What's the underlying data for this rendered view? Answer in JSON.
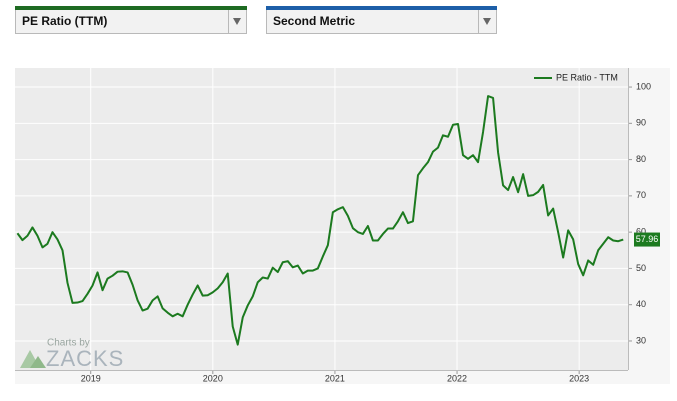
{
  "controls": {
    "metric_1": "PE Ratio (TTM)",
    "metric_2": "Second Metric"
  },
  "watermark": {
    "caption": "Charts by",
    "brand": "ZACKS"
  },
  "chart_data": {
    "type": "line",
    "x": [
      2018.4,
      2018.441,
      2018.482,
      2018.523,
      2018.564,
      2018.605,
      2018.646,
      2018.687,
      2018.728,
      2018.769,
      2018.81,
      2018.851,
      2018.892,
      2018.933,
      2018.974,
      2019.015,
      2019.056,
      2019.097,
      2019.138,
      2019.179,
      2019.22,
      2019.261,
      2019.302,
      2019.343,
      2019.384,
      2019.425,
      2019.466,
      2019.507,
      2019.548,
      2019.589,
      2019.63,
      2019.671,
      2019.712,
      2019.753,
      2019.794,
      2019.835,
      2019.876,
      2019.917,
      2019.958,
      2019.999,
      2020.04,
      2020.081,
      2020.122,
      2020.163,
      2020.204,
      2020.245,
      2020.286,
      2020.327,
      2020.368,
      2020.409,
      2020.45,
      2020.491,
      2020.532,
      2020.573,
      2020.614,
      2020.655,
      2020.696,
      2020.737,
      2020.778,
      2020.819,
      2020.86,
      2020.901,
      2020.942,
      2020.983,
      2021.024,
      2021.065,
      2021.106,
      2021.147,
      2021.188,
      2021.229,
      2021.27,
      2021.311,
      2021.352,
      2021.393,
      2021.434,
      2021.475,
      2021.516,
      2021.557,
      2021.598,
      2021.639,
      2021.68,
      2021.721,
      2021.762,
      2021.803,
      2021.844,
      2021.885,
      2021.926,
      2021.967,
      2022.008,
      2022.049,
      2022.09,
      2022.131,
      2022.172,
      2022.213,
      2022.254,
      2022.295,
      2022.336,
      2022.377,
      2022.418,
      2022.459,
      2022.5,
      2022.541,
      2022.582,
      2022.623,
      2022.664,
      2022.705,
      2022.746,
      2022.787,
      2022.828,
      2022.869,
      2022.91,
      2022.951,
      2022.992,
      2023.033,
      2023.074,
      2023.115,
      2023.156,
      2023.197,
      2023.238,
      2023.279,
      2023.32,
      2023.361
    ],
    "series": [
      {
        "name": "PE Ratio - TTM",
        "color": "#1c7a1f",
        "values": [
          59.7,
          57.8,
          59,
          61.3,
          59,
          55.8,
          56.8,
          60,
          58,
          55,
          46,
          40.5,
          40.6,
          41,
          43,
          45.3,
          48.9,
          44,
          47.2,
          48,
          49.1,
          49.2,
          48.9,
          45.5,
          41.2,
          38.4,
          38.9,
          41.2,
          42.3,
          39,
          37.8,
          36.8,
          37.5,
          36.8,
          40,
          42.8,
          45.3,
          42.5,
          42.6,
          43.4,
          44.5,
          46.2,
          48.6,
          34,
          29,
          36.5,
          39.8,
          42.3,
          46.2,
          47.5,
          47.2,
          50.2,
          49,
          51.7,
          52,
          50.3,
          50.8,
          48.6,
          49.4,
          49.4,
          50,
          53.3,
          56.4,
          65.5,
          66.3,
          66.9,
          64.5,
          61.1,
          60,
          59.5,
          61.7,
          57.7,
          57.7,
          59.5,
          61,
          61,
          63,
          65.5,
          62.5,
          63,
          75.7,
          77.6,
          79.3,
          82.2,
          83.3,
          86.7,
          86.3,
          89.6,
          89.8,
          81.2,
          80.2,
          81.2,
          79.3,
          87.6,
          97.5,
          97,
          82,
          72.9,
          71.6,
          75.2,
          71,
          76,
          70,
          70.2,
          71.1,
          73,
          64.6,
          66.5,
          60,
          53,
          60.5,
          58,
          51.2,
          48.1,
          52.2,
          51,
          55,
          56.8,
          58.6,
          57.7,
          57.5,
          57.96
        ]
      }
    ],
    "xlim": [
      2018.38,
      2023.4
    ],
    "xticks": [
      2019,
      2020,
      2021,
      2022,
      2023
    ],
    "ylim": [
      22,
      105.25
    ],
    "yticks": [
      30,
      40,
      50,
      60,
      70,
      80,
      90,
      100
    ],
    "grid": true,
    "legend": "top-right"
  }
}
